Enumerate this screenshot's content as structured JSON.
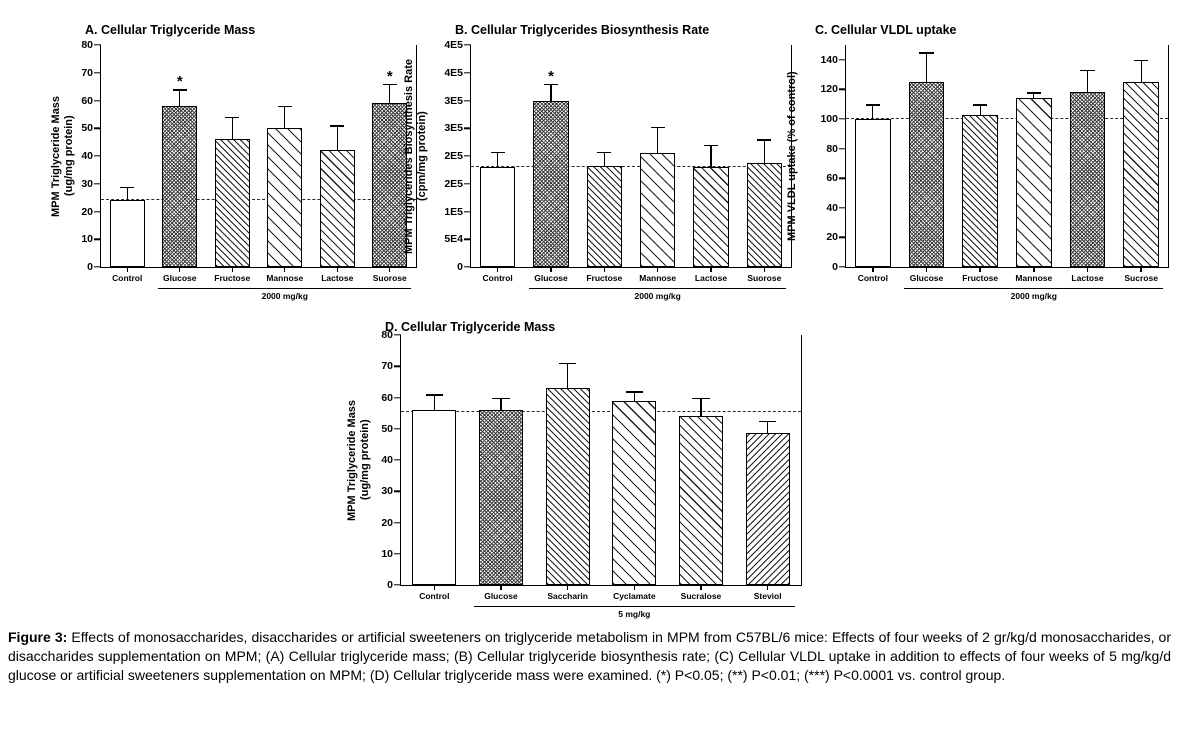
{
  "figure": {
    "caption_prefix": "Figure 3:",
    "caption_body": " Effects of monosaccharides, disaccharides or artificial sweeteners on triglyceride metabolism in MPM from C57BL/6 mice: Effects of four weeks of 2 gr/kg/d monosaccharides, or disaccharides supplementation on MPM; (A) Cellular triglyceride mass; (B) Cellular triglyceride biosynthesis rate; (C) Cellular VLDL uptake in addition to effects of four weeks of 5 mg/kg/d glucose or artificial sweeteners supplementation on MPM; (D) Cellular triglyceride mass were examined. (*) P<0.05; (**) P<0.01; (***) P<0.0001 vs. control group."
  },
  "chart_data": [
    {
      "id": "A",
      "type": "bar",
      "title": "A. Cellular Triglyceride Mass",
      "ylabel_lines": [
        "MPM Triglyceride Mass",
        "(ug/mg protein)"
      ],
      "ylim": [
        0,
        80
      ],
      "yticks": [
        0,
        10,
        20,
        30,
        40,
        50,
        60,
        70,
        80
      ],
      "ytick_labels": [
        "0",
        "10",
        "20",
        "30",
        "40",
        "50",
        "60",
        "70",
        "80"
      ],
      "categories": [
        "Control",
        "Glucose",
        "Fructose",
        "Mannose",
        "Lactose",
        "Suorose"
      ],
      "values": [
        24,
        58,
        46,
        50,
        42,
        59
      ],
      "errors": [
        5,
        6,
        8,
        8,
        9,
        7
      ],
      "annotations": [
        "",
        "*",
        "",
        "",
        "",
        "*"
      ],
      "patterns": [
        "open",
        "dense",
        "medium",
        "wide",
        "medium2",
        "dense"
      ],
      "ref_line": 24,
      "group_label": "2000 mg/kg",
      "group_range": [
        1,
        5
      ],
      "grid": false,
      "legend": false
    },
    {
      "id": "B",
      "type": "bar",
      "title": "B. Cellular Triglycerides Biosynthesis Rate",
      "ylabel_lines": [
        "MPM Triglycerides Biosynthesis Rate",
        "(cpm/mg protein)"
      ],
      "ylim": [
        0,
        400000
      ],
      "yticks": [
        0,
        50000,
        100000,
        150000,
        200000,
        250000,
        300000,
        350000,
        400000
      ],
      "ytick_labels": [
        "0",
        "5E4",
        "1E5",
        "2E5",
        "2E5",
        "3E5",
        "3E5",
        "4E5",
        "4E5"
      ],
      "categories": [
        "Control",
        "Glucose",
        "Fructose",
        "Mannose",
        "Lactose",
        "Suorose"
      ],
      "values": [
        180000,
        300000,
        182000,
        205000,
        180000,
        188000
      ],
      "errors": [
        28000,
        30000,
        26000,
        48000,
        40000,
        42000
      ],
      "annotations": [
        "",
        "*",
        "",
        "",
        "",
        ""
      ],
      "patterns": [
        "open",
        "dense",
        "medium",
        "wide",
        "medium2",
        "medium"
      ],
      "ref_line": 180000,
      "group_label": "2000 mg/kg",
      "group_range": [
        1,
        5
      ],
      "grid": false,
      "legend": false
    },
    {
      "id": "C",
      "type": "bar",
      "title": "C. Cellular VLDL uptake",
      "ylabel_lines": [
        "MPM VLDL uptake (% of control)"
      ],
      "ylim": [
        0,
        150
      ],
      "yticks": [
        0,
        20,
        40,
        60,
        80,
        100,
        120,
        140
      ],
      "ytick_labels": [
        "0",
        "20",
        "40",
        "60",
        "80",
        "100",
        "120",
        "140"
      ],
      "categories": [
        "Control",
        "Glucose",
        "Fructose",
        "Mannose",
        "Lactose",
        "Sucrose"
      ],
      "values": [
        100,
        125,
        103,
        114,
        118,
        125
      ],
      "errors": [
        10,
        20,
        7,
        4,
        15,
        15
      ],
      "annotations": [
        "",
        "",
        "",
        "",
        "",
        ""
      ],
      "patterns": [
        "open",
        "dense",
        "medium",
        "wide",
        "dense",
        "medium2"
      ],
      "ref_line": 100,
      "group_label": "2000 mg/kg",
      "group_range": [
        1,
        5
      ],
      "grid": false,
      "legend": false
    },
    {
      "id": "D",
      "type": "bar",
      "title": "D. Cellular Triglyceride Mass",
      "ylabel_lines": [
        "MPM Triglyceride Mass",
        "(ug/mg protein)"
      ],
      "ylim": [
        0,
        80
      ],
      "yticks": [
        0,
        10,
        20,
        30,
        40,
        50,
        60,
        70,
        80
      ],
      "ytick_labels": [
        "0",
        "10",
        "20",
        "30",
        "40",
        "50",
        "60",
        "70",
        "80"
      ],
      "categories": [
        "Control",
        "Glucose",
        "Saccharin",
        "Cyclamate",
        "Sucralose",
        "Steviol"
      ],
      "values": [
        56,
        56,
        63,
        59,
        54,
        48.5
      ],
      "errors": [
        5,
        4,
        8,
        3,
        6,
        4
      ],
      "annotations": [
        "",
        "",
        "",
        "",
        "",
        ""
      ],
      "patterns": [
        "open",
        "dense",
        "medium",
        "wide",
        "medium2",
        "back"
      ],
      "ref_line": 55.5,
      "group_label": "5 mg/kg",
      "group_range": [
        1,
        5
      ],
      "grid": false,
      "legend": false
    }
  ]
}
